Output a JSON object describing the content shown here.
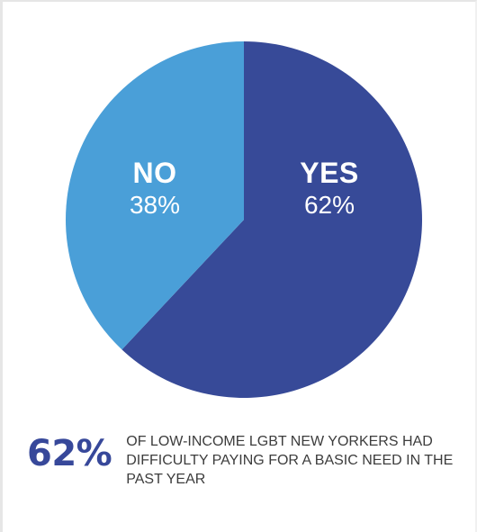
{
  "chart_data": {
    "type": "pie",
    "slices": [
      {
        "label": "YES",
        "value": 62,
        "value_label": "62%",
        "color": "#374a98"
      },
      {
        "label": "NO",
        "value": 38,
        "value_label": "38%",
        "color": "#4a9fd8"
      }
    ],
    "start": "12 o'clock",
    "direction": "clockwise"
  },
  "callout": {
    "number": "62%",
    "text": "OF LOW-INCOME LGBT NEW YORKERS HAD DIFFICULTY PAYING FOR A BASIC NEED IN THE PAST YEAR"
  }
}
